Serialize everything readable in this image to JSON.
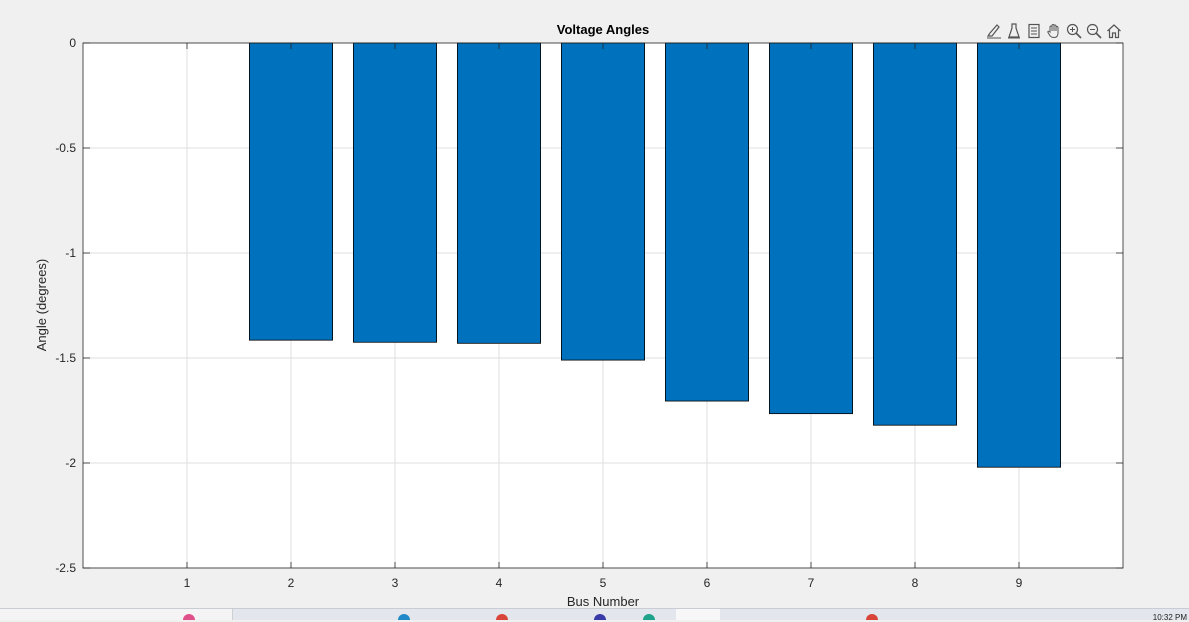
{
  "chart_data": {
    "type": "bar",
    "title": "Voltage Angles",
    "xlabel": "Bus Number",
    "ylabel": "Angle (degrees)",
    "categories": [
      1,
      2,
      3,
      4,
      5,
      6,
      7,
      8,
      9
    ],
    "values": [
      0,
      -1.415,
      -1.425,
      -1.43,
      -1.51,
      -1.705,
      -1.765,
      -1.82,
      -2.02
    ],
    "ylim": [
      -2.5,
      0
    ],
    "yticks": [
      0,
      -0.5,
      -1,
      -1.5,
      -2,
      -2.5
    ],
    "ytick_labels": [
      "0",
      "-0.5",
      "-1",
      "-1.5",
      "-2",
      "-2.5"
    ],
    "xlim": [
      0,
      10
    ],
    "xticks": [
      1,
      2,
      3,
      4,
      5,
      6,
      7,
      8,
      9
    ],
    "grid": true,
    "bar_color": "#0072bd",
    "bar_edge_color": "#000000"
  },
  "toolbar": {
    "icons": [
      "brush-icon",
      "data-tips-icon",
      "legend-icon",
      "pan-hand-icon",
      "zoom-in-icon",
      "zoom-out-icon",
      "home-icon"
    ]
  },
  "taskbar": {
    "clock": "10:32 PM"
  }
}
